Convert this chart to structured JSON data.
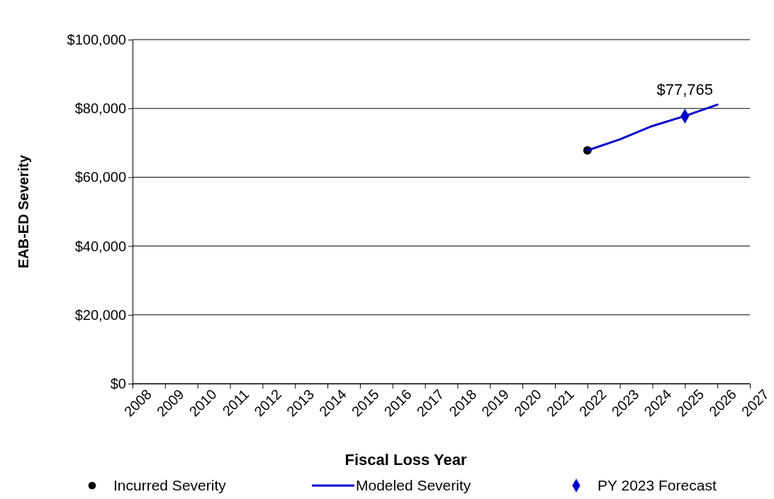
{
  "chart_data": {
    "type": "line",
    "xlabel": "Fiscal Loss Year",
    "ylabel": "EAB-ED Severity",
    "xlim": [
      2008,
      2027
    ],
    "xticks": [
      2008,
      2009,
      2010,
      2011,
      2012,
      2013,
      2014,
      2015,
      2016,
      2017,
      2018,
      2019,
      2020,
      2021,
      2022,
      2023,
      2024,
      2025,
      2026,
      2027
    ],
    "ylim": [
      0,
      100000
    ],
    "yticks": [
      {
        "value": 0,
        "label": "$0"
      },
      {
        "value": 20000,
        "label": "$20,000"
      },
      {
        "value": 40000,
        "label": "$40,000"
      },
      {
        "value": 60000,
        "label": "$60,000"
      },
      {
        "value": 80000,
        "label": "$80,000"
      },
      {
        "value": 100000,
        "label": "$100,000"
      }
    ],
    "grid": "y",
    "legend": "bottom",
    "series": [
      {
        "name": "Incurred Severity",
        "type": "scatter",
        "marker": "circle",
        "color": "#000000",
        "x": [
          2022
        ],
        "values": [
          67800
        ]
      },
      {
        "name": "Modeled Severity",
        "marker": "none",
        "line_style": "solid",
        "color": "#0000cc",
        "x": [
          2022,
          2023,
          2024,
          2025,
          2026
        ],
        "values": [
          67800,
          71000,
          74900,
          77800,
          81100
        ]
      },
      {
        "name": "PY 2023 Forecast",
        "type": "scatter",
        "marker": "diamond",
        "color": "#0000cc",
        "x": [
          2025
        ],
        "values": [
          77765
        ],
        "value_labels": [
          "$77,765"
        ]
      }
    ]
  }
}
